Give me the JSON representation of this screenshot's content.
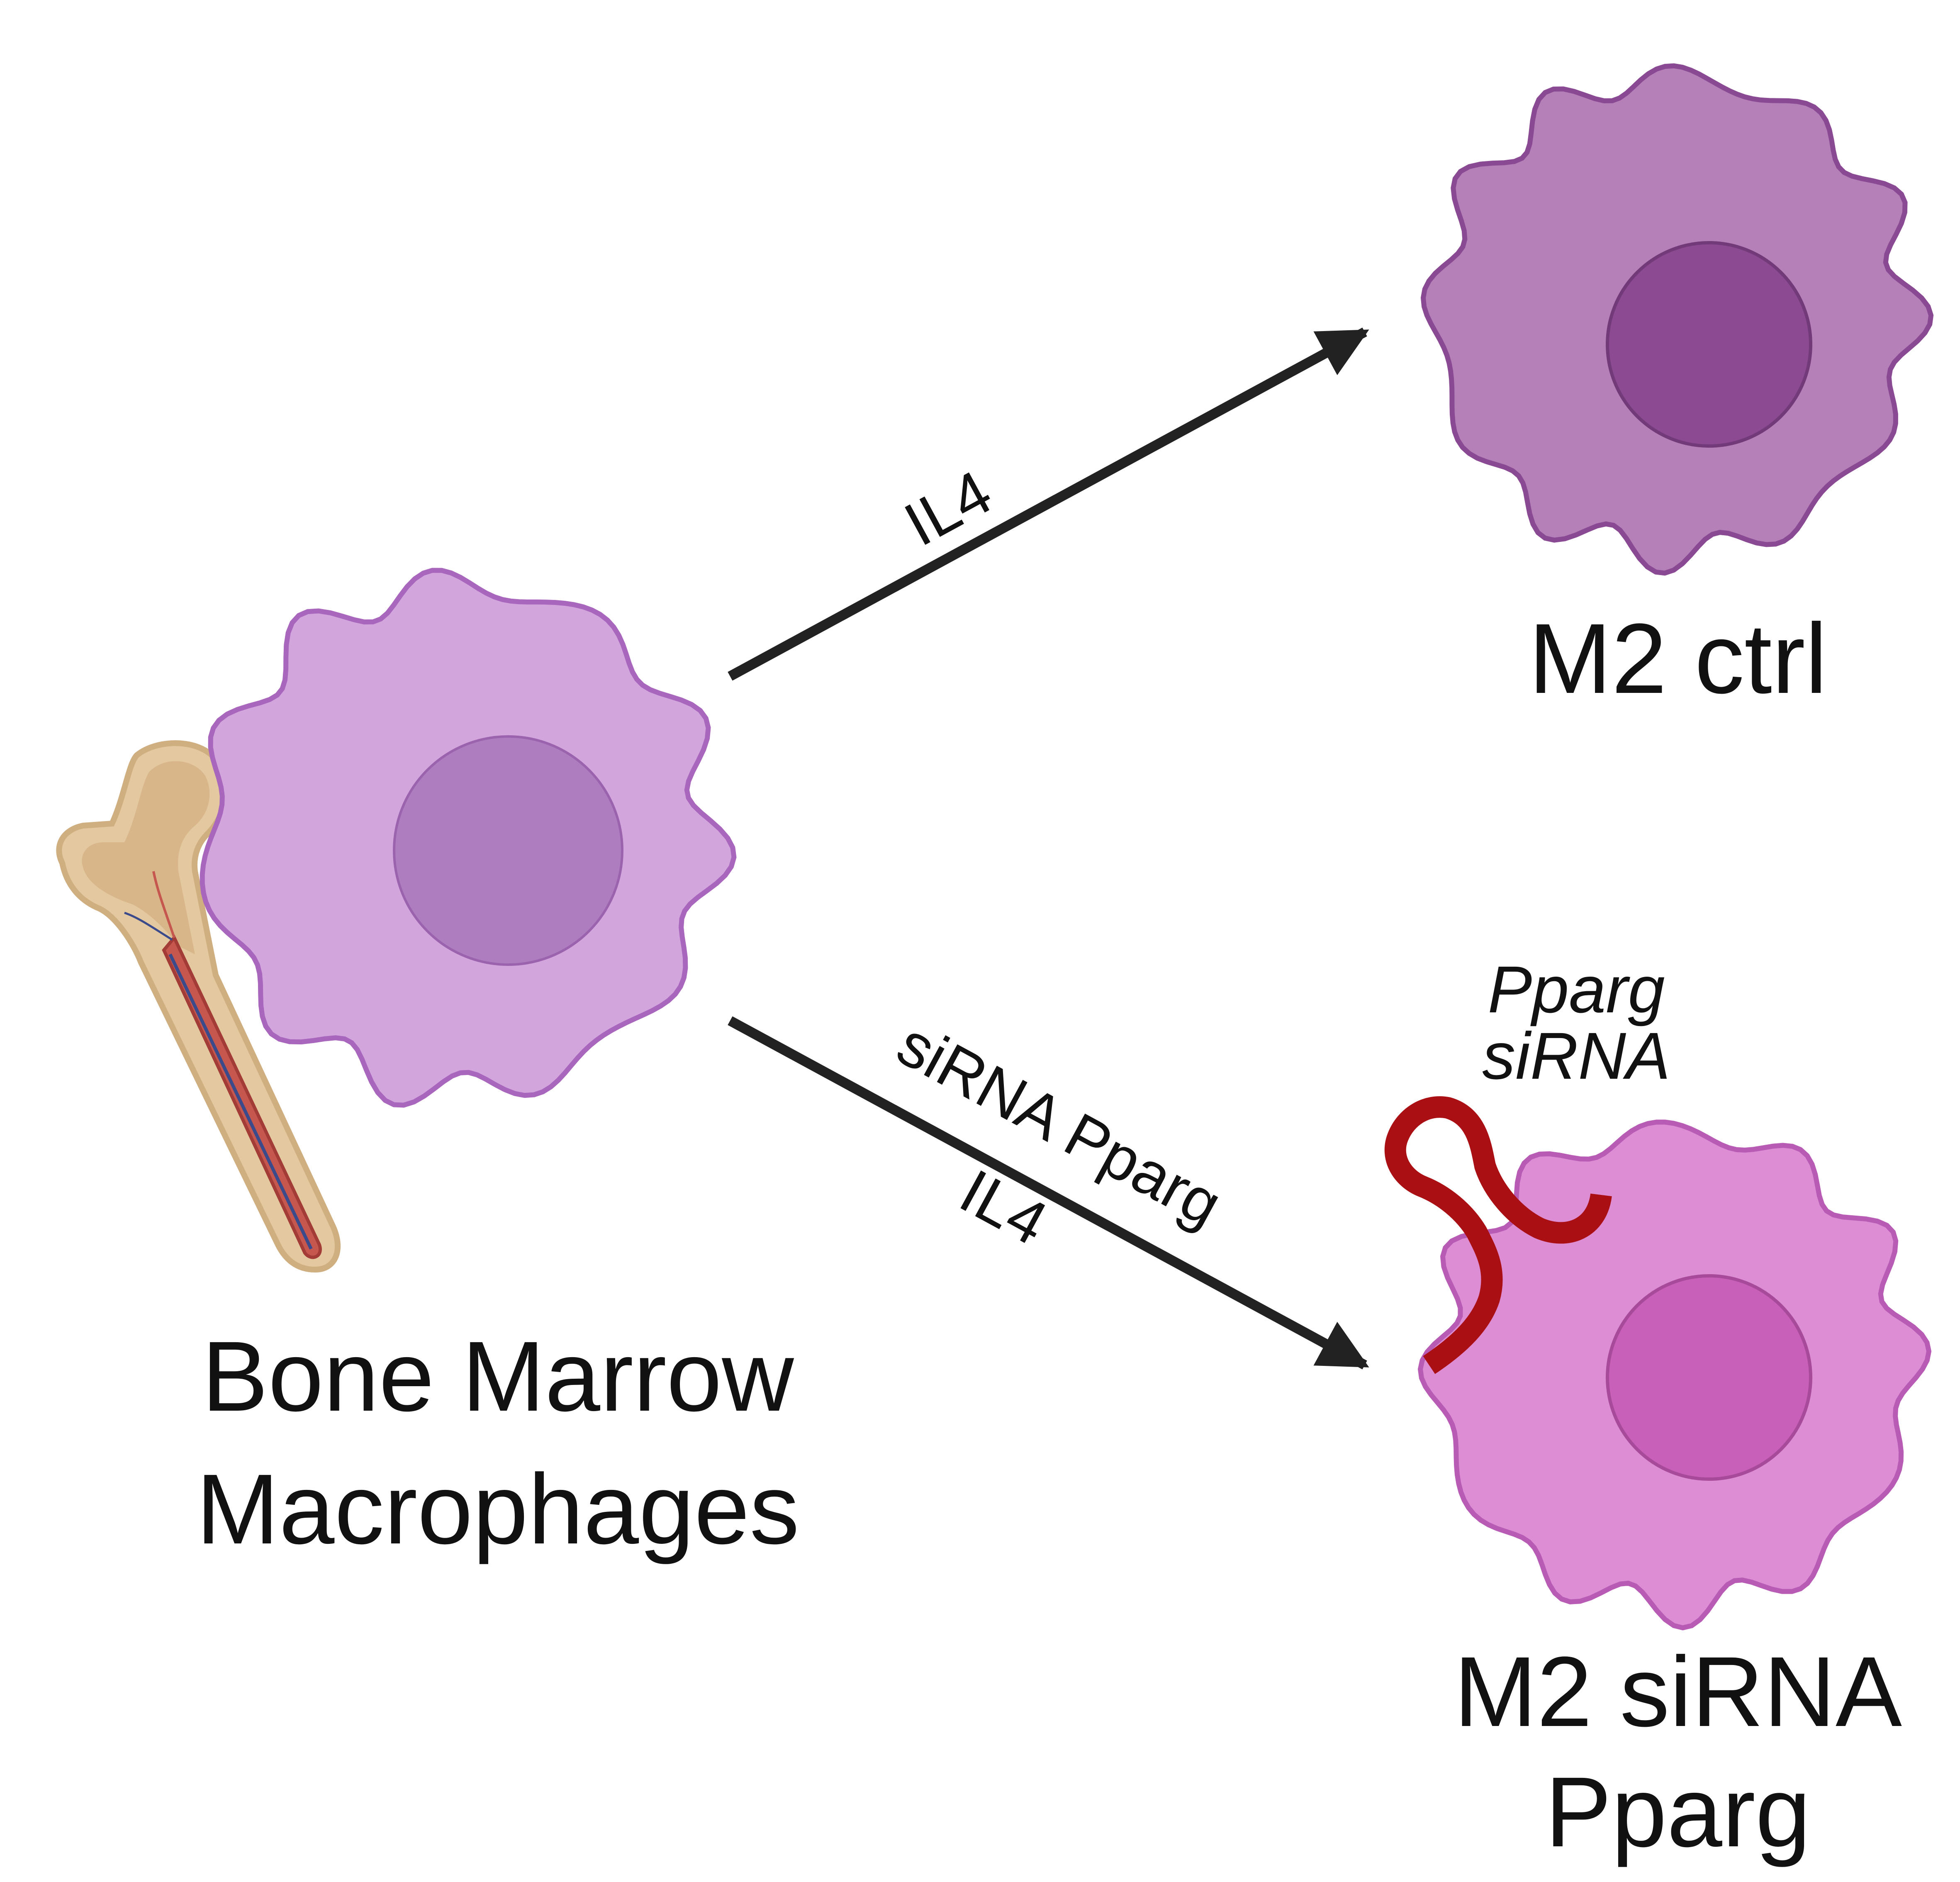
{
  "labels": {
    "source": [
      "Bone Marrow",
      "Macrophages"
    ],
    "target_ctrl": "M2 ctrl",
    "target_sirna": [
      "M2 siRNA",
      "Pparg"
    ],
    "arrow_top": "IL4",
    "arrow_bottom": [
      "siRNA Pparg",
      "IL4"
    ],
    "sirna_tag": [
      "Pparg",
      "siRNA"
    ]
  },
  "colors": {
    "bmm_fill": "#d3a5dd",
    "bmm_stroke": "#a866bd",
    "bmm_nucleus": "#ae7dbf",
    "ctrl_fill": "#b580b8",
    "ctrl_stroke": "#8a4a93",
    "ctrl_nucleus": "#8c4a92",
    "sirna_fill": "#dc8dd4",
    "sirna_stroke": "#b85bb5",
    "sirna_nucleus": "#c85fb9",
    "sirna_strand": "#aa0f14",
    "arrow": "#222222",
    "bone": "#e3c8a0",
    "marrow": "#c5574f"
  },
  "icons": {
    "bone": "femur-bone-icon",
    "sirna": "sirna-strand-icon",
    "macrophage": "macrophage-cell-icon"
  }
}
